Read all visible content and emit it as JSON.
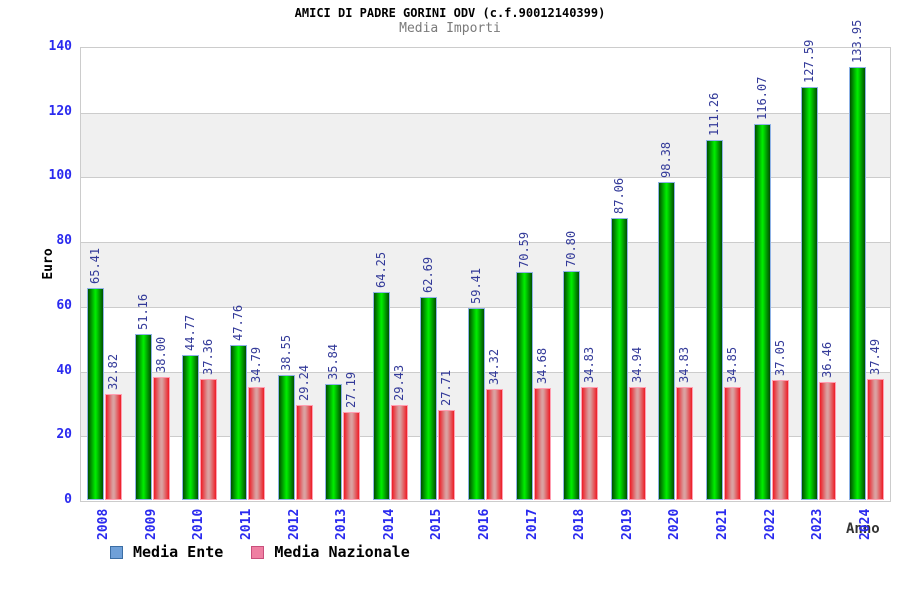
{
  "chart_data": {
    "type": "bar",
    "title": "AMICI DI PADRE GORINI ODV (c.f.90012140399)",
    "subtitle": "Media Importi",
    "xlabel": "Anno",
    "ylabel": "Euro",
    "ylim": [
      0,
      140
    ],
    "yticks": [
      0,
      20,
      40,
      60,
      80,
      100,
      120,
      140
    ],
    "grid": "horizontal-bands-alternating",
    "legend_position": "bottom-left",
    "categories": [
      "2008",
      "2009",
      "2010",
      "2011",
      "2012",
      "2013",
      "2014",
      "2015",
      "2016",
      "2017",
      "2018",
      "2019",
      "2020",
      "2021",
      "2022",
      "2023",
      "2024"
    ],
    "series": [
      {
        "name": "Media Ente",
        "values": [
          65.41,
          51.16,
          44.77,
          47.76,
          38.55,
          35.84,
          64.25,
          62.69,
          59.41,
          70.59,
          70.8,
          87.06,
          98.38,
          111.26,
          116.07,
          127.59,
          133.95
        ],
        "labels": [
          "65.41",
          "51.16",
          "44.77",
          "47.76",
          "38.55",
          "35.84",
          "64.25",
          "62.69",
          "59.41",
          "70.59",
          "70.80",
          "87.06",
          "98.38",
          "111.26",
          "116.07",
          "127.59",
          "133.95"
        ],
        "legend_fill": "#6fa0d8",
        "legend_border": "#3b6ea5"
      },
      {
        "name": "Media Nazionale",
        "values": [
          32.82,
          38.0,
          37.36,
          34.79,
          29.24,
          27.19,
          29.43,
          27.71,
          34.32,
          34.68,
          34.83,
          34.94,
          34.83,
          34.85,
          37.05,
          36.46,
          37.49
        ],
        "labels": [
          "32.82",
          "38.00",
          "37.36",
          "34.79",
          "29.24",
          "27.19",
          "29.43",
          "27.71",
          "34.32",
          "34.68",
          "34.83",
          "34.94",
          "34.83",
          "34.85",
          "37.05",
          "36.46",
          "37.49"
        ],
        "legend_fill": "#ef7fa2",
        "legend_border": "#c94f7c"
      }
    ]
  },
  "colors": {
    "tick_label": "#2a2aef",
    "value_label": "#333a99",
    "band_gray": "#f0f0f0",
    "grid_line": "#cccccc",
    "subtitle_gray": "#7a7a7a"
  }
}
